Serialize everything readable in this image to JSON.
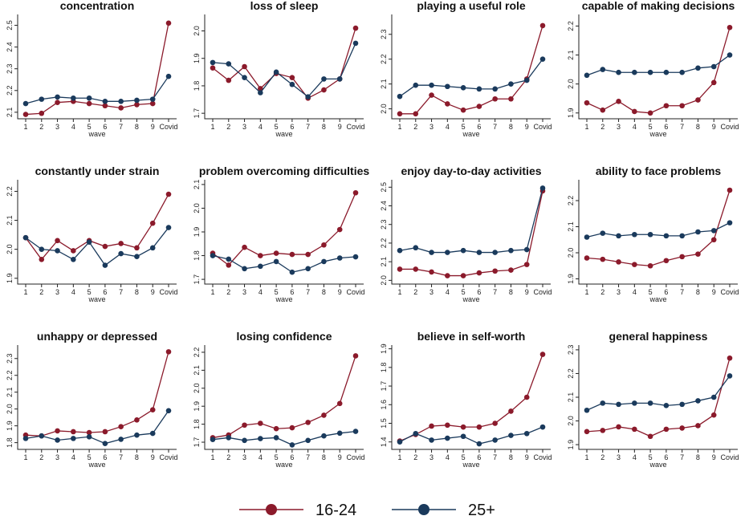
{
  "chart_data": {
    "type": "line",
    "layout": "small-multiples",
    "x": [
      "1",
      "2",
      "3",
      "4",
      "5",
      "6",
      "7",
      "8",
      "9",
      "Covid"
    ],
    "xlabel": "wave",
    "legend": {
      "placement": "bottom",
      "entries": [
        {
          "name": "16-24",
          "color": "#8b1a2b"
        },
        {
          "name": "25+",
          "color": "#1a3a5c"
        }
      ]
    },
    "panels": [
      {
        "title": "concentration",
        "ylim": [
          2.07,
          2.55
        ],
        "yticks": [
          2.1,
          2.2,
          2.3,
          2.4,
          2.5
        ],
        "series": [
          {
            "name": "16-24",
            "values": [
              2.09,
              2.095,
              2.145,
              2.15,
              2.14,
              2.13,
              2.12,
              2.135,
              2.14,
              2.51
            ]
          },
          {
            "name": "25+",
            "values": [
              2.14,
              2.16,
              2.17,
              2.165,
              2.165,
              2.15,
              2.15,
              2.155,
              2.16,
              2.265
            ]
          }
        ]
      },
      {
        "title": "loss of sleep",
        "ylim": [
          1.68,
          2.06
        ],
        "yticks": [
          1.7,
          1.8,
          1.9,
          2.0
        ],
        "series": [
          {
            "name": "16-24",
            "values": [
              1.865,
              1.82,
              1.87,
              1.79,
              1.845,
              1.83,
              1.755,
              1.785,
              1.825,
              2.01
            ]
          },
          {
            "name": "25+",
            "values": [
              1.885,
              1.88,
              1.83,
              1.775,
              1.85,
              1.805,
              1.76,
              1.825,
              1.825,
              1.955
            ]
          }
        ]
      },
      {
        "title": "playing a useful role",
        "ylim": [
          1.96,
          2.38
        ],
        "yticks": [
          2.0,
          2.1,
          2.2,
          2.3
        ],
        "series": [
          {
            "name": "16-24",
            "values": [
              1.98,
              1.98,
              2.055,
              2.02,
              1.995,
              2.01,
              2.04,
              2.04,
              2.12,
              2.335
            ]
          },
          {
            "name": "25+",
            "values": [
              2.05,
              2.095,
              2.095,
              2.09,
              2.085,
              2.08,
              2.08,
              2.1,
              2.115,
              2.2
            ]
          }
        ]
      },
      {
        "title": "capable of making decisions",
        "ylim": [
          1.88,
          2.24
        ],
        "yticks": [
          1.9,
          2.0,
          2.1,
          2.2
        ],
        "series": [
          {
            "name": "16-24",
            "values": [
              1.935,
              1.91,
              1.94,
              1.905,
              1.9,
              1.925,
              1.925,
              1.945,
              2.005,
              2.195
            ]
          },
          {
            "name": "25+",
            "values": [
              2.03,
              2.05,
              2.04,
              2.04,
              2.04,
              2.04,
              2.04,
              2.055,
              2.06,
              2.1
            ]
          }
        ]
      },
      {
        "title": "constantly under strain",
        "ylim": [
          1.88,
          2.24
        ],
        "yticks": [
          1.9,
          2.0,
          2.1,
          2.2
        ],
        "series": [
          {
            "name": "16-24",
            "values": [
              2.04,
              1.965,
              2.03,
              1.995,
              2.03,
              2.01,
              2.02,
              2.005,
              2.09,
              2.19
            ]
          },
          {
            "name": "25+",
            "values": [
              2.04,
              2.0,
              1.995,
              1.965,
              2.025,
              1.945,
              1.985,
              1.975,
              2.005,
              2.075
            ]
          }
        ]
      },
      {
        "title": "problem overcoming difficulties",
        "ylim": [
          1.68,
          2.12
        ],
        "yticks": [
          1.7,
          1.8,
          1.9,
          2.0,
          2.1
        ],
        "series": [
          {
            "name": "16-24",
            "values": [
              1.81,
              1.76,
              1.835,
              1.8,
              1.81,
              1.805,
              1.805,
              1.845,
              1.91,
              2.065
            ]
          },
          {
            "name": "25+",
            "values": [
              1.8,
              1.785,
              1.745,
              1.755,
              1.775,
              1.73,
              1.745,
              1.775,
              1.79,
              1.795
            ]
          }
        ]
      },
      {
        "title": "enjoy day-to-day activities",
        "ylim": [
          1.98,
          2.54
        ],
        "yticks": [
          2.0,
          2.1,
          2.2,
          2.3,
          2.4,
          2.5
        ],
        "series": [
          {
            "name": "16-24",
            "values": [
              2.06,
              2.06,
              2.045,
              2.025,
              2.025,
              2.04,
              2.05,
              2.055,
              2.085,
              2.48
            ]
          },
          {
            "name": "25+",
            "values": [
              2.16,
              2.175,
              2.15,
              2.15,
              2.16,
              2.15,
              2.15,
              2.16,
              2.165,
              2.495
            ]
          }
        ]
      },
      {
        "title": "ability to face problems",
        "ylim": [
          1.88,
          2.28
        ],
        "yticks": [
          1.9,
          2.0,
          2.1,
          2.2
        ],
        "series": [
          {
            "name": "16-24",
            "values": [
              1.98,
              1.975,
              1.965,
              1.955,
              1.95,
              1.97,
              1.985,
              1.995,
              2.05,
              2.24
            ]
          },
          {
            "name": "25+",
            "values": [
              2.06,
              2.075,
              2.065,
              2.07,
              2.07,
              2.065,
              2.065,
              2.08,
              2.085,
              2.115
            ]
          }
        ]
      },
      {
        "title": "unhappy or depressed",
        "ylim": [
          1.76,
          2.38
        ],
        "yticks": [
          1.8,
          1.9,
          2.0,
          2.1,
          2.2,
          2.3
        ],
        "series": [
          {
            "name": "16-24",
            "values": [
              1.845,
              1.84,
              1.87,
              1.865,
              1.86,
              1.865,
              1.895,
              1.935,
              1.995,
              2.34
            ]
          },
          {
            "name": "25+",
            "values": [
              1.825,
              1.84,
              1.815,
              1.825,
              1.835,
              1.795,
              1.82,
              1.845,
              1.855,
              1.99
            ]
          }
        ]
      },
      {
        "title": "losing confidence",
        "ylim": [
          1.66,
          2.24
        ],
        "yticks": [
          1.7,
          1.8,
          1.9,
          2.0,
          2.1,
          2.2
        ],
        "series": [
          {
            "name": "16-24",
            "values": [
              1.725,
              1.74,
              1.795,
              1.805,
              1.775,
              1.78,
              1.81,
              1.85,
              1.915,
              2.18
            ]
          },
          {
            "name": "25+",
            "values": [
              1.715,
              1.725,
              1.71,
              1.72,
              1.725,
              1.685,
              1.71,
              1.735,
              1.75,
              1.76
            ]
          }
        ]
      },
      {
        "title": "believe in self-worth",
        "ylim": [
          1.36,
          1.92
        ],
        "yticks": [
          1.4,
          1.5,
          1.6,
          1.7,
          1.8,
          1.9
        ],
        "series": [
          {
            "name": "16-24",
            "values": [
              1.405,
              1.44,
              1.485,
              1.49,
              1.48,
              1.48,
              1.5,
              1.565,
              1.64,
              1.87
            ]
          },
          {
            "name": "25+",
            "values": [
              1.4,
              1.445,
              1.41,
              1.42,
              1.43,
              1.39,
              1.41,
              1.435,
              1.445,
              1.48
            ]
          }
        ]
      },
      {
        "title": "general happiness",
        "ylim": [
          1.88,
          2.32
        ],
        "yticks": [
          1.9,
          2.0,
          2.1,
          2.2,
          2.3
        ],
        "series": [
          {
            "name": "16-24",
            "values": [
              1.955,
              1.96,
              1.975,
              1.965,
              1.935,
              1.965,
              1.97,
              1.98,
              2.025,
              2.265
            ]
          },
          {
            "name": "25+",
            "values": [
              2.045,
              2.075,
              2.07,
              2.075,
              2.075,
              2.065,
              2.07,
              2.085,
              2.1,
              2.19
            ]
          }
        ]
      }
    ]
  }
}
